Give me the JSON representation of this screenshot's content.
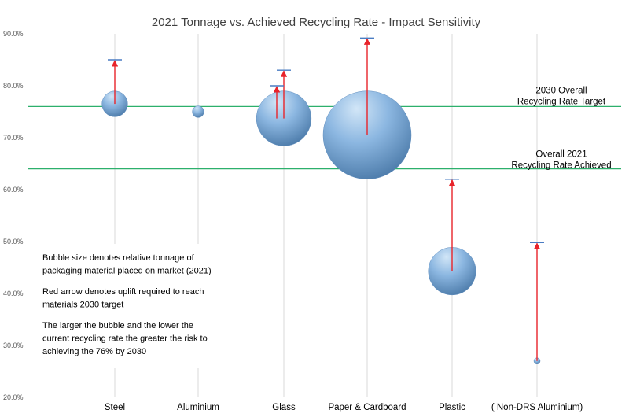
{
  "chart_data": {
    "type": "bubble",
    "title": "2021 Tonnage vs. Achieved Recycling Rate - Impact Sensitivity",
    "xlabel": "",
    "ylabel": "",
    "ylim": [
      20,
      90
    ],
    "y_ticks": [
      "20.0%",
      "30.0%",
      "40.0%",
      "50.0%",
      "60.0%",
      "70.0%",
      "80.0%",
      "90.0%"
    ],
    "grid": "vertical",
    "categories": [
      "Steel",
      "Aluminium",
      "Glass",
      "Paper & Cardboard",
      "Plastic",
      "( Non-DRS Aluminium)"
    ],
    "series": [
      {
        "bubbles": [
          {
            "category": "Steel",
            "rate": 76.5,
            "relative_tonnage": 0.034,
            "target": 85.0
          },
          {
            "category": "Aluminium",
            "rate": 75.0,
            "relative_tonnage": 0.007
          },
          {
            "category": "Glass",
            "rate": 73.7,
            "relative_tonnage": 0.155,
            "target": 83.0,
            "secondary_target": 80.0
          },
          {
            "category": "Paper & Cardboard",
            "rate": 70.5,
            "relative_tonnage": 0.4,
            "target": 89.2
          },
          {
            "category": "Plastic",
            "rate": 44.3,
            "relative_tonnage": 0.117,
            "target": 62.0
          },
          {
            "category": "( Non-DRS Aluminium)",
            "rate": 27.0,
            "relative_tonnage": 0.002,
            "target": 49.8
          }
        ]
      }
    ],
    "reference_lines": [
      {
        "value": 76.0,
        "label_lines": [
          "2030 Overall",
          "Recycling Rate Target"
        ],
        "color": "#2DB06C"
      },
      {
        "value": 64.0,
        "label_lines": [
          "Overall 2021",
          "Recycling Rate Achieved"
        ],
        "color": "#2DB06C"
      }
    ],
    "annotation_lines": [
      "Bubble size denotes relative tonnage of",
      "packaging material placed on market (2021)",
      "",
      "Red arrow denotes uplift required to reach",
      "materials 2030 target",
      "",
      "The larger the bubble and the lower the",
      "current recycling rate the greater the risk to",
      "achieving the 76% by 2030"
    ],
    "colors": {
      "bubble_light": "#D2E6F7",
      "bubble_mid": "#8CB7E1",
      "bubble_dark": "#4978A7",
      "arrow": "#E8232A",
      "target_cap": "#4A7CC3",
      "reference_line": "#2DB06C",
      "gridline": "#D9D9D9"
    }
  }
}
